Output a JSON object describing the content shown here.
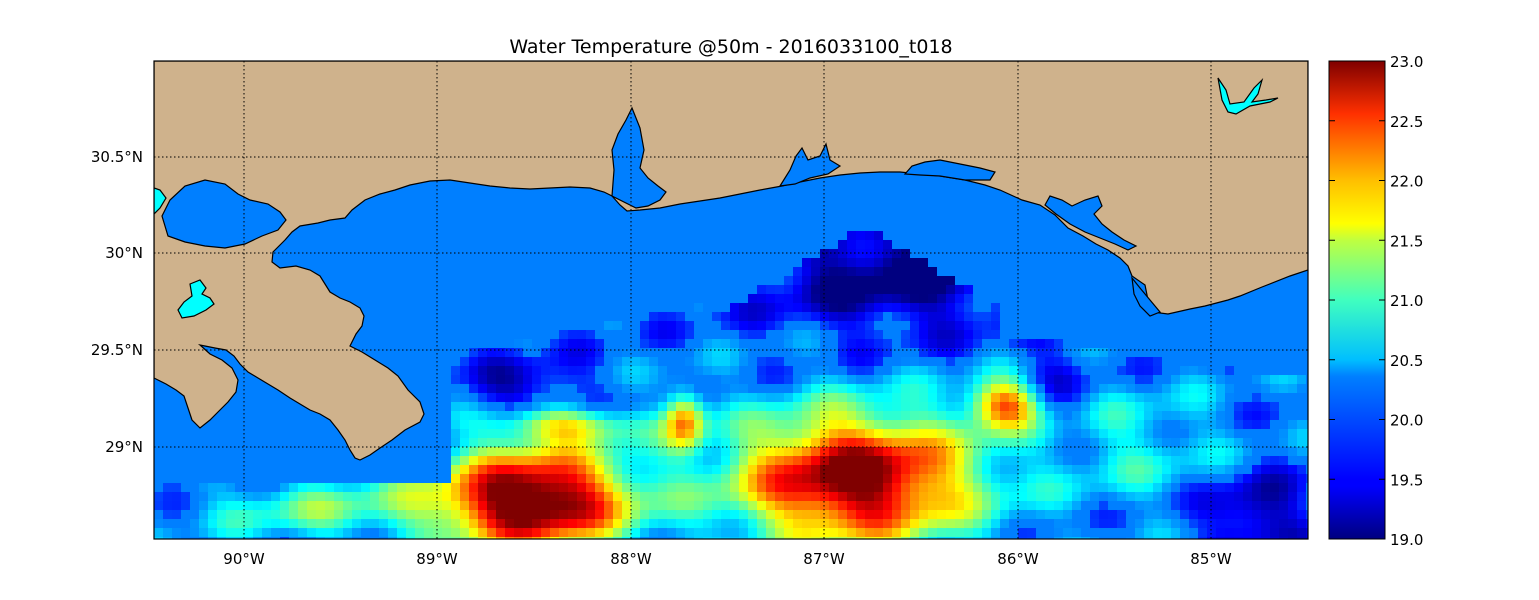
{
  "title": "Water Temperature @50m - 2016033100_t018",
  "map": {
    "lon_range": [
      -90.5,
      -84.5
    ],
    "lat_range": [
      28.55,
      31.0
    ],
    "x_ticks": [
      "90°W",
      "89°W",
      "88°W",
      "87°W",
      "86°W",
      "85°W"
    ],
    "y_ticks": [
      "30.5°N",
      "30°N",
      "29.5°N",
      "29°N"
    ],
    "grid": true,
    "land_color": "#cfb28c",
    "lake_color": "#00ffff",
    "background_water_color": "#007fff"
  },
  "colorbar": {
    "colormap": "jet",
    "min": 19.0,
    "max": 23.0,
    "ticks": [
      "23.0",
      "22.5",
      "22.0",
      "21.5",
      "21.0",
      "20.5",
      "20.0",
      "19.5",
      "19.0"
    ]
  }
}
